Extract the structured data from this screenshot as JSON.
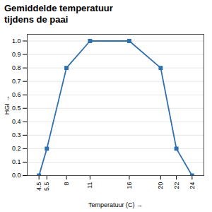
{
  "chart_data": {
    "type": "line",
    "title": "Gemiddelde temperatuur\ntijdens de paai",
    "xlabel": "Temperatuur (C)",
    "ylabel": "HGI",
    "x": [
      4.5,
      5.5,
      8,
      11,
      16,
      20,
      22,
      24
    ],
    "values": [
      0.0,
      0.2,
      0.8,
      1.0,
      1.0,
      0.8,
      0.2,
      0.0
    ],
    "color": "#2e6fad",
    "marker": "square",
    "xlim": [
      3.0,
      25.5
    ],
    "ylim": [
      0.0,
      1.05
    ],
    "xticks": [
      4.5,
      5.5,
      8,
      11,
      16,
      20,
      22,
      24
    ],
    "yticks": [
      {
        "value": 0.0,
        "label": "0.0"
      },
      0.1,
      0.2,
      0.3,
      0.4,
      0.5,
      0.6,
      0.7,
      0.8,
      0.9,
      {
        "value": 1.0,
        "label": "1.0"
      }
    ],
    "grid": true
  }
}
